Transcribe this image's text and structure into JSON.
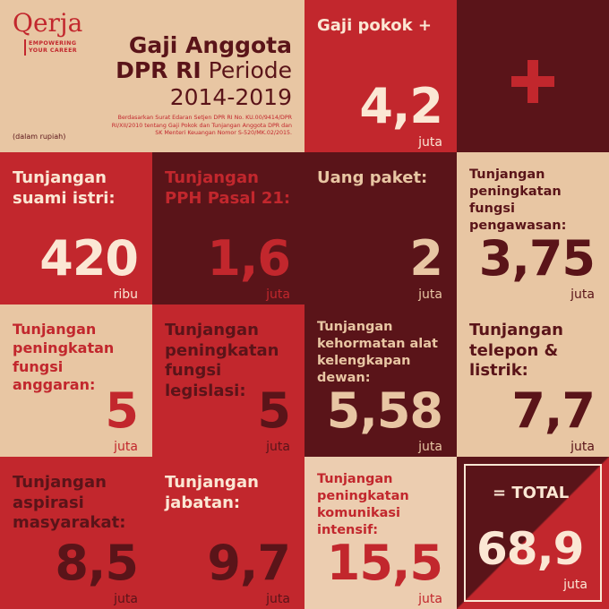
{
  "header": {
    "logo": "Qerja",
    "tagline_line1": "EMPOWERING",
    "tagline_line2": "YOUR CAREER",
    "title_line1": "Gaji Anggota",
    "title_line2_bold": "DPR RI",
    "title_line2_rest": " Periode",
    "title_line3": "2014-2019",
    "source": "Berdasarkan Surat Edaran Setjen DPR RI No. KU.00/9414/DPR RI/XII/2010 tentang Gaji Pokok dan Tunjangan Anggota DPR dan SK Menteri Keuangan Nomor S-520/MK.02/2015.",
    "currency_note": "(dalam rupiah)"
  },
  "tiles": [
    {
      "label": "Gaji pokok +",
      "value": "4,2",
      "unit": "juta"
    },
    {
      "label": "Tunjangan suami istri:",
      "value": "420",
      "unit": "ribu"
    },
    {
      "label": "Tunjangan PPH Pasal 21:",
      "value": "1,6",
      "unit": "juta"
    },
    {
      "label": "Uang paket:",
      "value": "2",
      "unit": "juta"
    },
    {
      "label": "Tunjangan peningkatan fungsi pengawasan:",
      "value": "3,75",
      "unit": "juta"
    },
    {
      "label": "Tunjangan peningkatan fungsi anggaran:",
      "value": "5",
      "unit": "juta"
    },
    {
      "label": "Tunjangan peningkatan fungsi legislasi:",
      "value": "5",
      "unit": "juta"
    },
    {
      "label": "Tunjangan kehormatan alat kelengkapan dewan:",
      "value": "5,58",
      "unit": "juta"
    },
    {
      "label": "Tunjangan telepon & listrik:",
      "value": "7,7",
      "unit": "juta"
    },
    {
      "label": "Tunjangan aspirasi masyarakat:",
      "value": "8,5",
      "unit": "juta"
    },
    {
      "label": "Tunjangan jabatan:",
      "value": "9,7",
      "unit": "juta"
    },
    {
      "label": "Tunjangan peningkatan komunikasi intensif:",
      "value": "15,5",
      "unit": "juta"
    }
  ],
  "total": {
    "label": "= TOTAL",
    "value": "68,9",
    "unit": "juta"
  },
  "colors": {
    "red": "#c2272d",
    "dark": "#5a1419",
    "tan": "#e8c6a3",
    "cream": "#fbe7d4"
  },
  "icons": [
    "plus-icon"
  ]
}
